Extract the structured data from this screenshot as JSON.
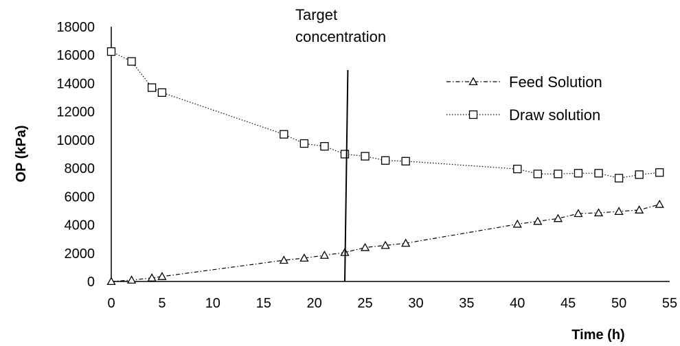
{
  "chart_data": {
    "type": "line",
    "title": "",
    "xlabel": "Time (h)",
    "ylabel": "OP (kPa)",
    "xlim": [
      0,
      55
    ],
    "ylim": [
      0,
      18000
    ],
    "x_ticks": [
      0,
      5,
      10,
      15,
      20,
      25,
      30,
      35,
      40,
      45,
      50,
      55
    ],
    "y_ticks": [
      0,
      2000,
      4000,
      6000,
      8000,
      10000,
      12000,
      14000,
      16000,
      18000
    ],
    "grid": false,
    "legend_position": "right",
    "series": [
      {
        "name": "Feed Solution",
        "marker": "triangle",
        "line_style": "dash-dot",
        "color": "#000000",
        "x": [
          0,
          2,
          4,
          5,
          17,
          19,
          21,
          23,
          25,
          27,
          29,
          40,
          42,
          44,
          46,
          48,
          50,
          52,
          54
        ],
        "y": [
          0,
          100,
          250,
          350,
          1500,
          1650,
          1850,
          2050,
          2400,
          2550,
          2700,
          4050,
          4250,
          4450,
          4800,
          4850,
          4950,
          5050,
          5450
        ]
      },
      {
        "name": "Draw solution",
        "marker": "square",
        "line_style": "dotted",
        "color": "#000000",
        "x": [
          0,
          2,
          4,
          5,
          17,
          19,
          21,
          23,
          25,
          27,
          29,
          40,
          42,
          44,
          46,
          48,
          50,
          52,
          54
        ],
        "y": [
          16250,
          15550,
          13700,
          13350,
          10400,
          9750,
          9550,
          9000,
          8850,
          8550,
          8500,
          7950,
          7600,
          7600,
          7650,
          7650,
          7300,
          7550,
          7700
        ]
      }
    ],
    "annotations": [
      {
        "label_lines": [
          "Target",
          "concentration"
        ],
        "type": "vertical_line",
        "x_top": 23.3,
        "x_bottom": 23.0
      }
    ]
  }
}
